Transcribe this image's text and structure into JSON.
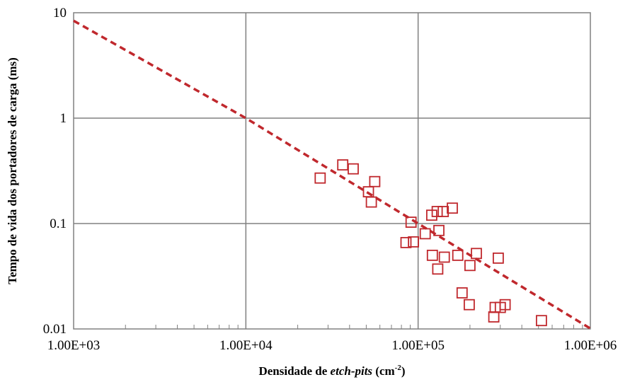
{
  "chart_data": {
    "type": "scatter",
    "title": "",
    "xlabel": {
      "prefix": "Densidade de ",
      "italic": "etch-pits",
      "unit_open": " (cm",
      "unit_sup": "-2",
      "unit_close": ")"
    },
    "ylabel": "Tempo de vida dos portadores de carga (ms)",
    "x_scale": "log",
    "y_scale": "log",
    "xlim": [
      1000,
      1000000
    ],
    "ylim": [
      0.01,
      10
    ],
    "x_ticks": [
      1000,
      10000,
      100000,
      1000000
    ],
    "x_tick_labels": [
      "1.00E+03",
      "1.00E+04",
      "1.00E+05",
      "1.00E+06"
    ],
    "y_ticks": [
      0.01,
      0.1,
      1,
      10
    ],
    "y_tick_labels": [
      "0.01",
      "0.1",
      "1",
      "10"
    ],
    "grid": true,
    "colors": {
      "marker": "#c0282d",
      "trendline": "#c0282d",
      "grid": "#808080",
      "axis": "#808080"
    },
    "series": [
      {
        "marker": "square-open",
        "x": [
          27000,
          36500,
          42000,
          51500,
          53500,
          56000,
          85000,
          91000,
          94000,
          110000,
          120000,
          121000,
          129000,
          130000,
          132000,
          140000,
          142000,
          158000,
          170000,
          180000,
          198000,
          200000,
          218000,
          275000,
          280000,
          292000,
          300000,
          320000,
          520000
        ],
        "y": [
          0.27,
          0.36,
          0.33,
          0.2,
          0.16,
          0.25,
          0.066,
          0.103,
          0.067,
          0.08,
          0.12,
          0.05,
          0.13,
          0.037,
          0.086,
          0.13,
          0.048,
          0.14,
          0.05,
          0.022,
          0.017,
          0.04,
          0.052,
          0.013,
          0.016,
          0.047,
          0.016,
          0.017,
          0.012
        ]
      }
    ],
    "trendline": {
      "style": "dashed",
      "type": "power",
      "points": [
        [
          1000,
          8.4
        ],
        [
          10000,
          1.0
        ],
        [
          100000,
          0.1
        ],
        [
          1000000,
          0.0101
        ]
      ]
    }
  }
}
